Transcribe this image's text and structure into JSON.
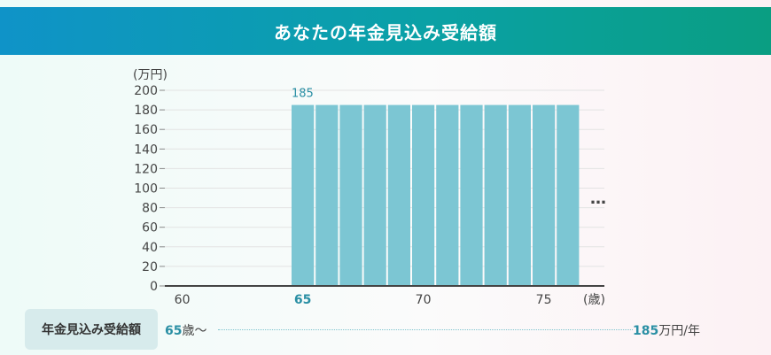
{
  "header": {
    "title": "あなたの年金見込み受給額"
  },
  "chart_data": {
    "type": "bar",
    "ylabel": "(万円)",
    "xlabel": "(歳)",
    "ylim": [
      0,
      200
    ],
    "yticks": [
      0,
      20,
      40,
      60,
      80,
      100,
      120,
      140,
      160,
      180,
      200
    ],
    "categories": [
      60,
      61,
      62,
      63,
      64,
      65,
      66,
      67,
      68,
      69,
      70,
      71,
      72,
      73,
      74,
      75,
      76
    ],
    "xticks": [
      {
        "value": 60,
        "label": "60",
        "highlight": false
      },
      {
        "value": 65,
        "label": "65",
        "highlight": true
      },
      {
        "value": 70,
        "label": "70",
        "highlight": false
      },
      {
        "value": 75,
        "label": "75",
        "highlight": false
      }
    ],
    "values": [
      0,
      0,
      0,
      0,
      0,
      185,
      185,
      185,
      185,
      185,
      185,
      185,
      185,
      185,
      185,
      185,
      185
    ],
    "data_label": {
      "category": 65,
      "text": "185"
    },
    "continuation": "…",
    "bar_color": "#7cc6d3",
    "highlight_color": "#2a8fa4",
    "grid": true
  },
  "summary": {
    "label": "年金見込み受給額",
    "start_age": "65",
    "start_suffix": "歳〜",
    "amount": "185",
    "amount_unit": "万円/年"
  }
}
